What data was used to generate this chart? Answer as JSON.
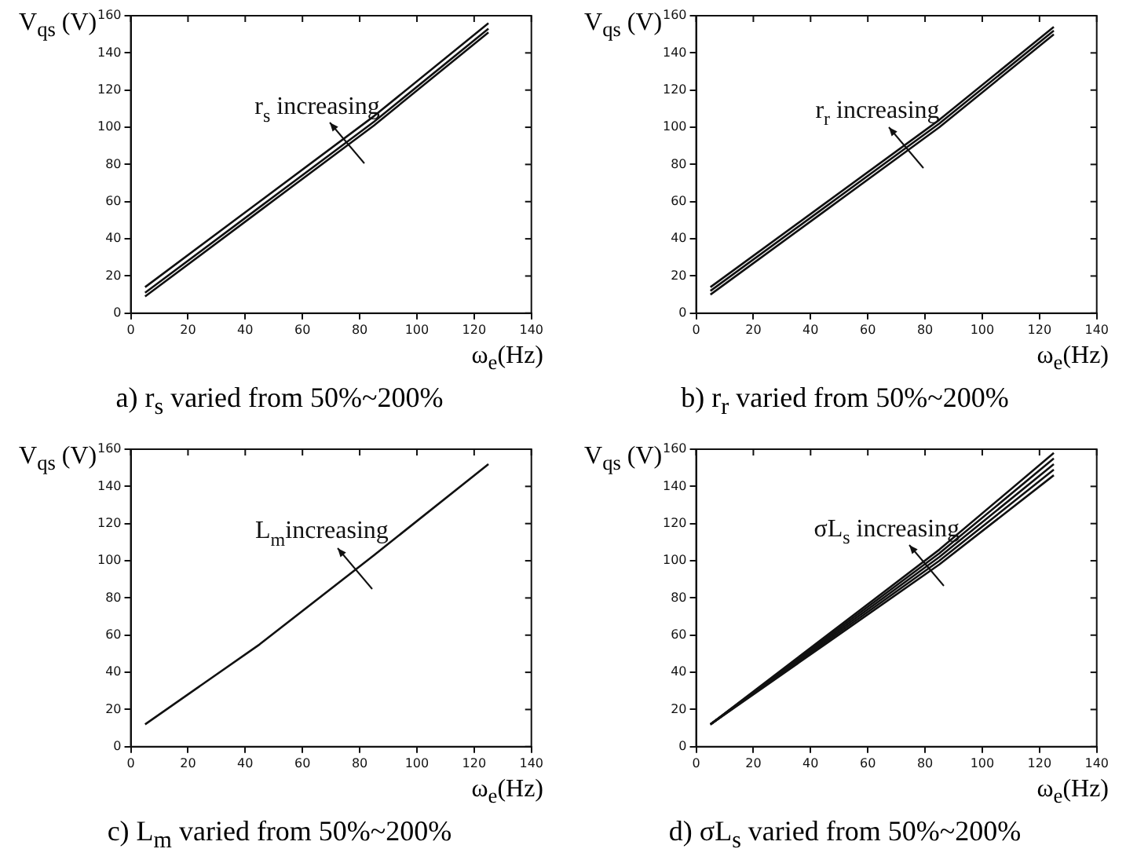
{
  "chart_data": [
    {
      "type": "line",
      "title": "a) r$_{s}$ varied from 50%~200%",
      "xlabel": "ω$_{e}$(Hz)",
      "ylabel": "V$_{qs}$ (V)",
      "xlim": [
        0,
        140
      ],
      "xticks": [
        0,
        20,
        40,
        60,
        80,
        100,
        120,
        140
      ],
      "ylim": [
        0,
        160
      ],
      "yticks": [
        0,
        20,
        40,
        60,
        80,
        100,
        120,
        140,
        160
      ],
      "marker": "none",
      "line_style": "solid",
      "annotations": [
        {
          "text": "r$_{s}$ increasing",
          "x": 75,
          "y": 92
        }
      ],
      "x": [
        5,
        45,
        85,
        125
      ],
      "series": [
        {
          "color": "#111111",
          "values": [
            9,
            55,
            101,
            151
          ]
        },
        {
          "color": "#111111",
          "values": [
            11,
            57,
            103,
            153
          ]
        },
        {
          "color": "#111111",
          "values": [
            14,
            60,
            106,
            156
          ]
        }
      ]
    },
    {
      "type": "line",
      "title": "b) r$_{r}$ varied from 50%~200%",
      "xlabel": "ω$_{e}$(Hz)",
      "ylabel": "V$_{qs}$ (V)",
      "xlim": [
        0,
        140
      ],
      "xticks": [
        0,
        20,
        40,
        60,
        80,
        100,
        120,
        140
      ],
      "ylim": [
        0,
        160
      ],
      "yticks": [
        0,
        20,
        40,
        60,
        80,
        100,
        120,
        140,
        160
      ],
      "marker": "none",
      "line_style": "solid",
      "annotations": [
        {
          "text": "r$_{r}$ increasing",
          "x": 73,
          "y": 90
        }
      ],
      "x": [
        5,
        45,
        85,
        125
      ],
      "series": [
        {
          "color": "#111111",
          "values": [
            10,
            55,
            100,
            150
          ]
        },
        {
          "color": "#111111",
          "values": [
            12,
            57,
            102,
            152
          ]
        },
        {
          "color": "#111111",
          "values": [
            14,
            59,
            104,
            154
          ]
        }
      ]
    },
    {
      "type": "line",
      "title": "c) L$_{m}$ varied from 50%~200%",
      "xlabel": "ω$_{e}$(Hz)",
      "ylabel": "V$_{qs}$ (V)",
      "xlim": [
        0,
        140
      ],
      "xticks": [
        0,
        20,
        40,
        60,
        80,
        100,
        120,
        140
      ],
      "ylim": [
        0,
        160
      ],
      "yticks": [
        0,
        20,
        40,
        60,
        80,
        100,
        120,
        140,
        160
      ],
      "marker": "none",
      "line_style": "solid",
      "annotations": [
        {
          "text": "L$_{m}$increasing",
          "x": 78,
          "y": 97
        }
      ],
      "x": [
        5,
        45,
        85,
        125
      ],
      "series": [
        {
          "color": "#111111",
          "values": [
            12,
            55,
            103,
            152
          ]
        }
      ]
    },
    {
      "type": "line",
      "title": "d) σL$_{s}$ varied from 50%~200%",
      "xlabel": "ω$_{e}$(Hz)",
      "ylabel": "V$_{qs}$ (V)",
      "xlim": [
        0,
        140
      ],
      "xticks": [
        0,
        20,
        40,
        60,
        80,
        100,
        120,
        140
      ],
      "ylim": [
        0,
        160
      ],
      "yticks": [
        0,
        20,
        40,
        60,
        80,
        100,
        120,
        140,
        160
      ],
      "marker": "none",
      "line_style": "solid",
      "annotations": [
        {
          "text": "σL$_{s}$ increasing",
          "x": 80,
          "y": 98
        }
      ],
      "x": [
        5,
        45,
        85,
        125
      ],
      "series": [
        {
          "color": "#111111",
          "values": [
            12,
            55,
            98,
            146
          ]
        },
        {
          "color": "#111111",
          "values": [
            12,
            56,
            100,
            149
          ]
        },
        {
          "color": "#111111",
          "values": [
            12,
            57,
            102,
            152
          ]
        },
        {
          "color": "#111111",
          "values": [
            12,
            58,
            104,
            155
          ]
        },
        {
          "color": "#111111",
          "values": [
            12,
            59,
            106,
            158
          ]
        }
      ]
    }
  ]
}
